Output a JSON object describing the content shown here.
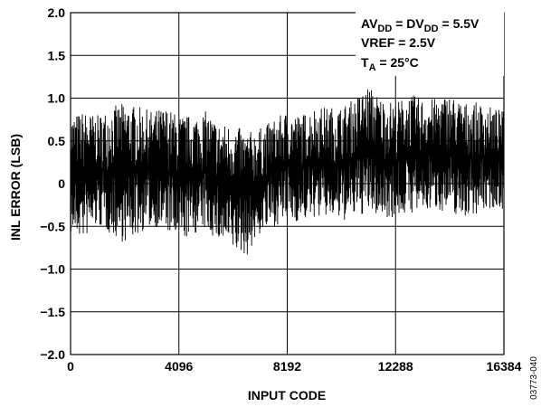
{
  "chart_data": {
    "type": "line",
    "title": "",
    "xlabel": "INPUT CODE",
    "ylabel": "INL ERROR (LSB)",
    "xlim": [
      0,
      16384
    ],
    "ylim": [
      -2.0,
      2.0
    ],
    "x_ticks": [
      "0",
      "4096",
      "8192",
      "12288",
      "16384"
    ],
    "y_ticks": [
      "2.0",
      "1.5",
      "1.0",
      "0.5",
      "0",
      "−0.5",
      "−1.0",
      "−1.5",
      "−2.0"
    ],
    "grid": true,
    "annotations": {
      "line1": {
        "a": "AV",
        "a_sub": "DD",
        "b": " = DV",
        "b_sub": "DD",
        "c": " = 5.5V"
      },
      "line2": "VREF = 2.5V",
      "line3": {
        "a": "T",
        "a_sub": "A",
        "b": " = 25°C"
      }
    },
    "series": [
      {
        "color": "#000000",
        "x": [
          0,
          512,
          1024,
          1536,
          2048,
          2560,
          3072,
          3584,
          4096,
          4608,
          5120,
          5632,
          6144,
          6656,
          7168,
          7680,
          8192,
          8704,
          9216,
          9728,
          10240,
          10752,
          11264,
          11776,
          12288,
          12800,
          13312,
          13824,
          14336,
          14848,
          15360,
          15872,
          16384
        ],
        "upper": [
          0.8,
          0.85,
          0.8,
          0.9,
          0.95,
          0.9,
          0.85,
          0.9,
          0.8,
          0.8,
          0.85,
          0.7,
          0.7,
          0.6,
          0.65,
          0.75,
          0.85,
          0.8,
          0.9,
          0.9,
          0.9,
          1.0,
          1.15,
          1.0,
          0.95,
          1.05,
          1.0,
          1.0,
          1.05,
          0.95,
          0.95,
          0.9,
          0.85
        ],
        "lower": [
          -0.6,
          -0.65,
          -0.5,
          -0.6,
          -0.7,
          -0.6,
          -0.5,
          -0.55,
          -0.7,
          -0.6,
          -0.55,
          -0.7,
          -0.8,
          -0.85,
          -0.6,
          -0.5,
          -0.45,
          -0.45,
          -0.4,
          -0.4,
          -0.45,
          -0.4,
          -0.35,
          -0.4,
          -0.4,
          -0.35,
          -0.35,
          -0.3,
          -0.35,
          -0.4,
          -0.35,
          -0.3,
          -0.3
        ]
      }
    ]
  },
  "figure_id": "03773-040"
}
